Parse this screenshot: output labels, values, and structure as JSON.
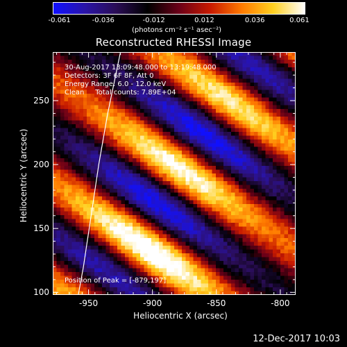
{
  "colorbar": {
    "ticks": [
      "-0.061",
      "-0.036",
      "-0.012",
      "0.012",
      "0.036",
      "0.061"
    ],
    "units": "(photons cm⁻² s⁻¹ asec⁻²)",
    "colors": [
      "#1010ff",
      "#2a14a8",
      "#2a0d55",
      "#000000",
      "#6a0018",
      "#c81a00",
      "#ff7a00",
      "#ffd020",
      "#ffffff"
    ]
  },
  "plot": {
    "title": "Reconstructed RHESSI Image",
    "info_lines": [
      "30-Aug-2017 13:09:48.000 to 13:19:48.000",
      "Detectors: 3F 6F 8F, Att 0",
      "Energy Range: 6.0 - 12.0 keV",
      "Clean     Total counts: 7.89E+04"
    ],
    "peak_label": "Position of Peak = [-879,197]",
    "xlabel": "Heliocentric X (arcsec)",
    "ylabel": "Heliocentric Y (arcsec)",
    "xticks": [
      "-950",
      "-900",
      "-850",
      "-800"
    ],
    "yticks": [
      "100",
      "150",
      "200",
      "250"
    ]
  },
  "chart_data": {
    "type": "heatmap",
    "title": "Reconstructed RHESSI Image",
    "xlabel": "Heliocentric X (arcsec)",
    "ylabel": "Heliocentric Y (arcsec)",
    "xlim": [
      -978,
      -788
    ],
    "ylim": [
      98,
      288
    ],
    "clim": [
      -0.061,
      0.061
    ],
    "peak": [
      -879,
      197
    ],
    "limb": [
      [
        -925,
        288
      ],
      [
        -935,
        240
      ],
      [
        -942,
        200
      ],
      [
        -948,
        160
      ],
      [
        -954,
        120
      ],
      [
        -958,
        98
      ]
    ]
  },
  "footer": {
    "timestamp": "12-Dec-2017 10:03"
  }
}
